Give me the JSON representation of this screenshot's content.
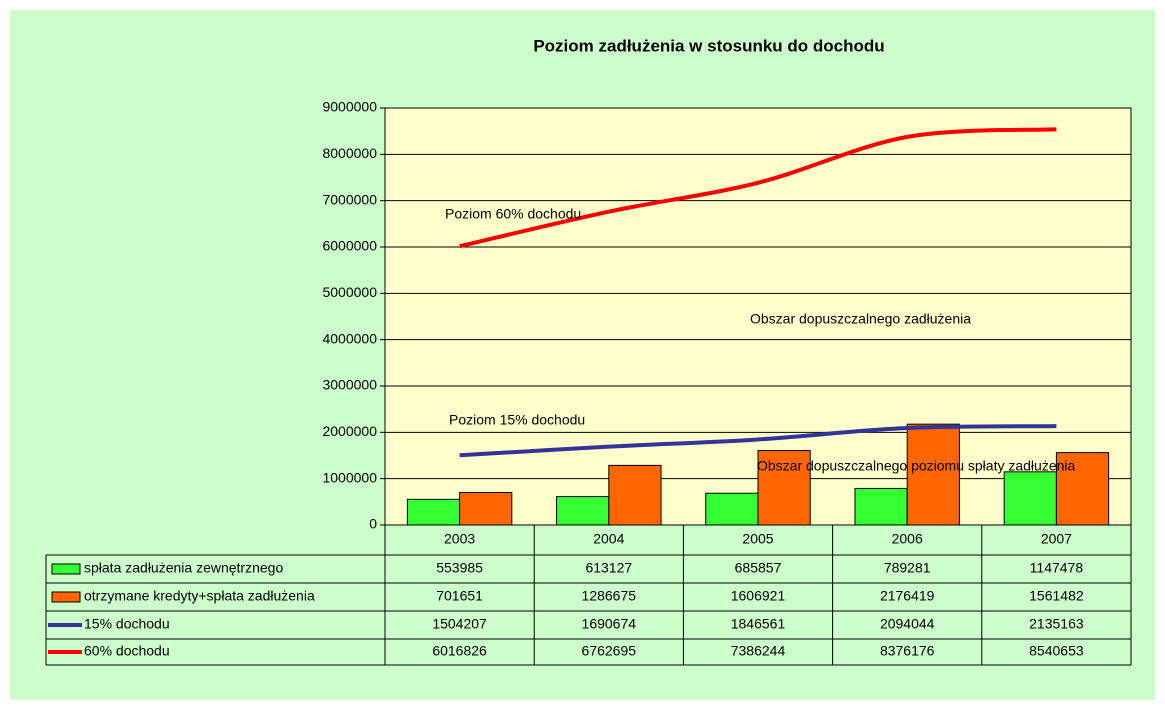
{
  "chart_data": {
    "type": "bar",
    "title": "Poziom zadłużenia w stosunku do dochodu",
    "categories": [
      "2003",
      "2004",
      "2005",
      "2006",
      "2007"
    ],
    "series": [
      {
        "name": "spłata zadłużenia zewnętrznego",
        "type": "bar",
        "color": "#33ff33",
        "values": [
          553985,
          613127,
          685857,
          789281,
          1147478
        ]
      },
      {
        "name": "otrzymane kredyty+spłata zadłużenia",
        "type": "bar",
        "color": "#ff6600",
        "values": [
          701651,
          1286675,
          1606921,
          2176419,
          1561482
        ]
      },
      {
        "name": "15% dochodu",
        "type": "line",
        "color": "#333399",
        "values": [
          1504207,
          1690674,
          1846561,
          2094044,
          2135163
        ]
      },
      {
        "name": "60% dochodu",
        "type": "line",
        "color": "#ff0000",
        "values": [
          6016826,
          6762695,
          7386244,
          8376176,
          8540653
        ]
      }
    ],
    "annotations": [
      "Poziom 60% dochodu",
      "Obszar dopuszczalnego zadłużenia",
      "Poziom 15% dochodu",
      "Obszar dopuszczalnego poziomu spłaty zadłużenia"
    ],
    "ylim": [
      0,
      9000000
    ],
    "yticks": [
      0,
      1000000,
      2000000,
      3000000,
      4000000,
      5000000,
      6000000,
      7000000,
      8000000,
      9000000
    ],
    "grid": true
  }
}
